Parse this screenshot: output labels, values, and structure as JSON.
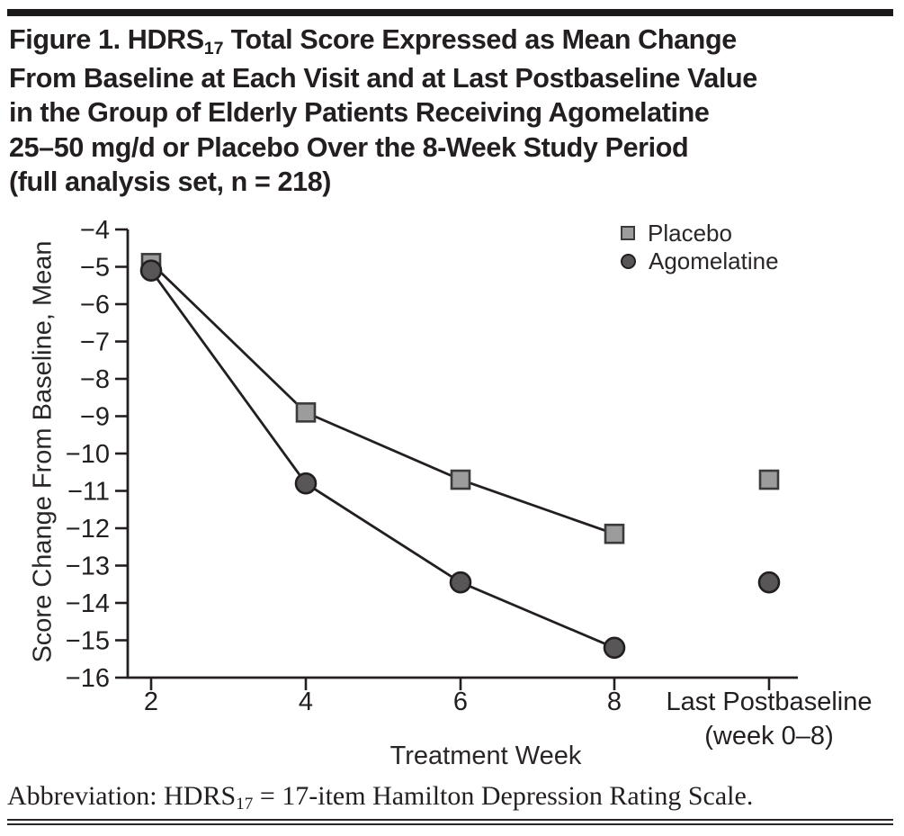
{
  "figure": {
    "title_lines": [
      {
        "parts": [
          {
            "t": "Figure 1. HDRS"
          },
          {
            "t": "17",
            "sub": true
          },
          {
            "t": " Total Score Expressed as Mean Change"
          }
        ]
      },
      {
        "parts": [
          {
            "t": "From Baseline at Each Visit and at Last Postbaseline Value"
          }
        ]
      },
      {
        "parts": [
          {
            "t": "in the Group of Elderly Patients Receiving Agomelatine"
          }
        ]
      },
      {
        "parts": [
          {
            "t": "25–50 mg/d or Placebo Over the 8-Week Study Period"
          }
        ]
      },
      {
        "parts": [
          {
            "t": "(full analysis set, n = 218)"
          }
        ]
      }
    ],
    "footnote_parts": [
      {
        "t": "Abbreviation: HDRS"
      },
      {
        "t": "17",
        "sub": true
      },
      {
        "t": " = 17-item Hamilton Depression Rating Scale."
      }
    ]
  },
  "chart_data": {
    "type": "line",
    "title": "",
    "xlabel": "Treatment Week",
    "ylabel": "Score Change From Baseline, Mean",
    "categories": [
      "2",
      "4",
      "6",
      "8",
      "Last Postbaseline"
    ],
    "last_category_sublabel": "(week 0–8)",
    "ylim": [
      -16,
      -4
    ],
    "ytick_values": [
      -4,
      -5,
      -6,
      -7,
      -8,
      -9,
      -10,
      -11,
      -12,
      -13,
      -14,
      -15,
      -16
    ],
    "ytick_labels": [
      "−4",
      "−5",
      "−6",
      "−7",
      "−8",
      "−9",
      "−10",
      "−11",
      "−12",
      "−13",
      "−14",
      "−15",
      "−16"
    ],
    "grid": false,
    "legend_position": "top-right",
    "note": "Last Postbaseline markers are isolated (not connected by lines); weeks 2-8 are connected.",
    "series": [
      {
        "name": "Placebo",
        "marker": "square",
        "marker_fill": "#9c9c9c",
        "marker_stroke": "#3d3a3b",
        "values": [
          -4.9,
          -8.9,
          -10.7,
          -12.15,
          -10.7
        ],
        "connected_point_indices": [
          0,
          1,
          2,
          3
        ]
      },
      {
        "name": "Agomelatine",
        "marker": "circle",
        "marker_fill": "#595657",
        "marker_stroke": "#231f20",
        "values": [
          -5.1,
          -10.8,
          -13.45,
          -15.2,
          -13.45
        ],
        "connected_point_indices": [
          0,
          1,
          2,
          3
        ]
      }
    ]
  },
  "colors": {
    "ink": "#231f20",
    "background": "#ffffff"
  }
}
